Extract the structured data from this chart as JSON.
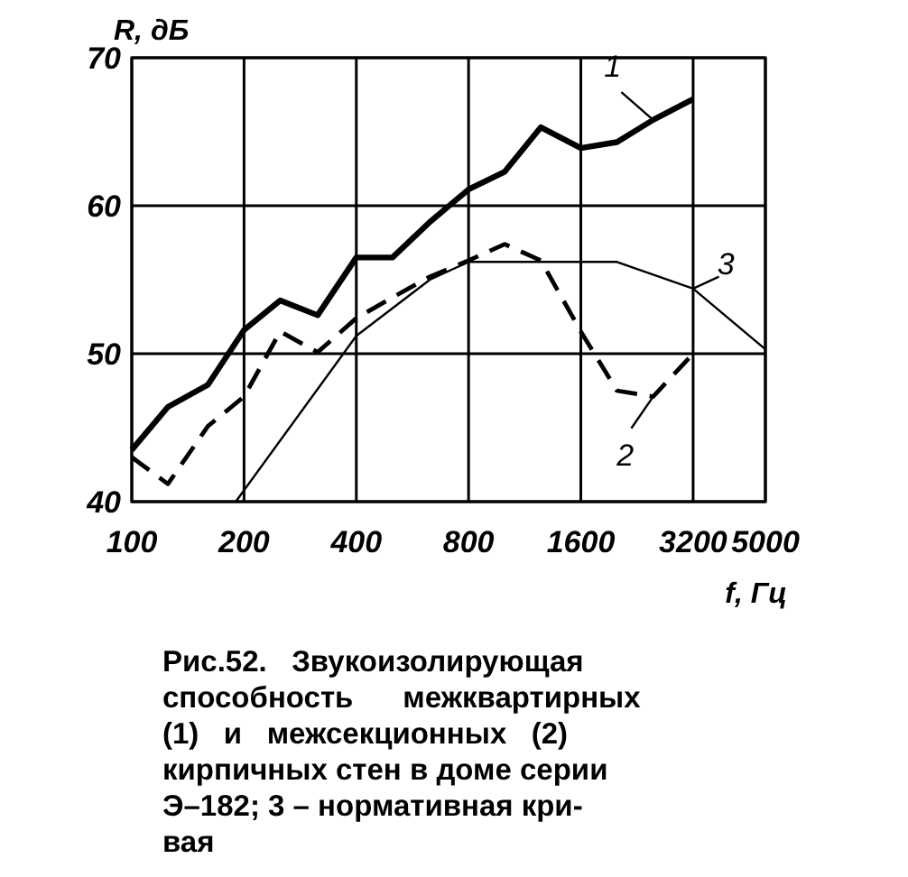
{
  "chart_data": {
    "type": "line",
    "xlabel": "f, Гц",
    "ylabel": "R, дБ",
    "log": "x",
    "xlim": [
      100,
      5000
    ],
    "xticks": [
      100,
      200,
      400,
      800,
      1600,
      3200,
      5000
    ],
    "ylim": [
      40,
      70
    ],
    "yticks": [
      40,
      50,
      60,
      70
    ],
    "grid": true,
    "x": [
      100,
      125,
      160,
      200,
      250,
      315,
      400,
      500,
      630,
      800,
      1000,
      1250,
      1600,
      2000,
      2500,
      3200
    ],
    "series": [
      {
        "name": "1",
        "color": "#000000",
        "line_style": "solid",
        "values": [
          43.5,
          46.4,
          47.9,
          51.6,
          53.6,
          52.6,
          56.5,
          56.5,
          58.9,
          61.1,
          62.3,
          65.3,
          63.9,
          64.3,
          65.8,
          67.2
        ]
      },
      {
        "name": "2",
        "color": "#000000",
        "line_style": "dashed",
        "values": [
          43.0,
          41.2,
          45.1,
          47.1,
          51.5,
          50.1,
          52.4,
          53.8,
          55.2,
          56.3,
          57.4,
          56.3,
          51.5,
          47.5,
          47.1,
          50.0
        ]
      },
      {
        "name": "3",
        "color": "#000000",
        "line_style": "solid",
        "x": [
          190,
          400,
          630,
          800,
          2000,
          3200,
          5000
        ],
        "values": [
          40,
          51.2,
          55,
          56.2,
          56.2,
          54.4,
          50.3
        ]
      }
    ],
    "annotations": [
      "Рис.52.   Звукоизолирующая\nспособность      межквартирных\n(1)   и   межсекционных   (2)\nкирпичных стен в доме серии\nЭ–182; 3 – нормативная кри-\nвая"
    ]
  }
}
